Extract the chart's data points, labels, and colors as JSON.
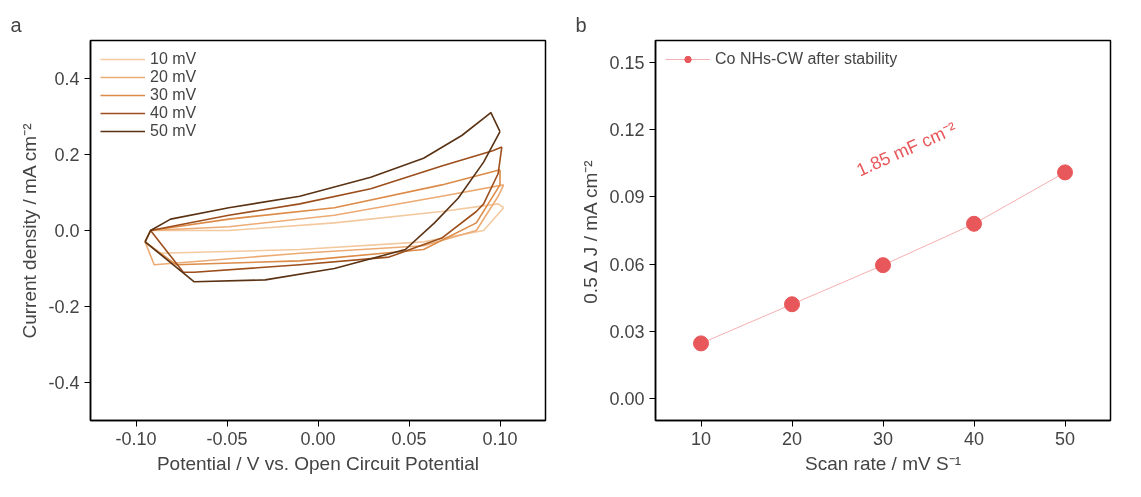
{
  "chart_data": [
    {
      "type": "line",
      "title": "a",
      "xlabel": "Potential / V vs. Open Circuit Potential",
      "ylabel": "Current density / mA cm⁻²",
      "xlim": [
        -0.125,
        0.125
      ],
      "ylim": [
        -0.5,
        0.5
      ],
      "xticks": [
        {
          "value": -0.1,
          "label": "-0.10"
        },
        {
          "value": -0.05,
          "label": "-0.05"
        },
        {
          "value": 0,
          "label": "0.00"
        },
        {
          "value": 0.05,
          "label": "0.05"
        },
        {
          "value": 0.1,
          "label": "0.10"
        }
      ],
      "yticks": [
        {
          "value": -0.4,
          "label": "-0.4"
        },
        {
          "value": -0.2,
          "label": "-0.2"
        },
        {
          "value": 0,
          "label": "0.0"
        },
        {
          "value": 0.2,
          "label": "0.2"
        },
        {
          "value": 0.4,
          "label": "0.4"
        }
      ],
      "grid": false,
      "legend": "top left",
      "marker": "none",
      "line_style": "solid",
      "series": [
        {
          "name": "10 mV",
          "color": "#f3c9a0",
          "x": [
            -0.095,
            -0.092,
            -0.049,
            0.009,
            0.068,
            0.099,
            0.102
          ],
          "values": [
            -0.03,
            0.0,
            0.0,
            0.02,
            0.05,
            0.07,
            0.06
          ]
        },
        {
          "color": "#f3c9a0",
          "x": [
            -0.095,
            -0.087,
            -0.01,
            0.058,
            0.091,
            0.102
          ],
          "values": [
            -0.03,
            -0.06,
            -0.05,
            -0.03,
            0.0,
            0.06
          ]
        },
        {
          "name": "20 mV",
          "color": "#ecab74",
          "x": [
            -0.095,
            -0.092,
            -0.049,
            0.009,
            0.068,
            0.102
          ],
          "values": [
            -0.03,
            0.0,
            0.01,
            0.04,
            0.09,
            0.12
          ]
        },
        {
          "color": "#ecab74",
          "x": [
            -0.095,
            -0.09,
            -0.01,
            0.058,
            0.087,
            0.099,
            0.102
          ],
          "values": [
            -0.03,
            -0.09,
            -0.06,
            -0.04,
            0.0,
            0.09,
            0.12
          ]
        },
        {
          "name": "30 mV",
          "color": "#dc8b48",
          "x": [
            -0.095,
            -0.092,
            -0.049,
            0.009,
            0.068,
            0.1
          ],
          "values": [
            -0.03,
            0.0,
            0.03,
            0.06,
            0.12,
            0.16
          ]
        },
        {
          "color": "#dc8b48",
          "x": [
            -0.095,
            -0.078,
            -0.01,
            0.058,
            0.087,
            0.1,
            0.1
          ],
          "values": [
            -0.03,
            -0.09,
            -0.08,
            -0.05,
            0.02,
            0.12,
            0.16
          ]
        },
        {
          "name": "40 mV",
          "color": "#9c4e1c",
          "x": [
            -0.092,
            -0.049,
            -0.01,
            0.029,
            0.068,
            0.096,
            0.101
          ],
          "values": [
            0.0,
            0.04,
            0.07,
            0.11,
            0.17,
            0.21,
            0.22
          ]
        },
        {
          "color": "#9c4e1c",
          "x": [
            -0.092,
            -0.074,
            -0.068,
            -0.01,
            0.039,
            0.068,
            0.087,
            0.091,
            0.099,
            0.101
          ],
          "values": [
            0.0,
            -0.11,
            -0.11,
            -0.09,
            -0.07,
            -0.02,
            0.05,
            0.07,
            0.15,
            0.22
          ]
        },
        {
          "name": "50 mV",
          "color": "#5a3214",
          "x": [
            -0.095,
            -0.092,
            -0.081,
            -0.049,
            -0.01,
            0.029,
            0.058,
            0.079,
            0.095,
            0.1
          ],
          "values": [
            -0.03,
            0.0,
            0.03,
            0.06,
            0.09,
            0.14,
            0.19,
            0.25,
            0.31,
            0.26
          ]
        },
        {
          "color": "#5a3214",
          "x": [
            -0.095,
            -0.068,
            -0.029,
            0.009,
            0.048,
            0.064,
            0.077,
            0.091,
            0.1
          ],
          "values": [
            -0.03,
            -0.135,
            -0.13,
            -0.1,
            -0.05,
            0.02,
            0.085,
            0.18,
            0.26
          ]
        }
      ]
    },
    {
      "type": "line",
      "title": "b",
      "xlabel": "Scan rate / mV S⁻¹",
      "ylabel": "0.5 Δ J / mA cm⁻²",
      "xlim": [
        5,
        55
      ],
      "ylim": [
        -0.01,
        0.16
      ],
      "xticks": [
        10,
        20,
        30,
        40,
        50
      ],
      "yticks": [
        {
          "value": 0,
          "label": "0.00"
        },
        {
          "value": 0.03,
          "label": "0.03"
        },
        {
          "value": 0.06,
          "label": "0.06"
        },
        {
          "value": 0.09,
          "label": "0.09"
        },
        {
          "value": 0.12,
          "label": "0.12"
        },
        {
          "value": 0.15,
          "label": "0.15"
        }
      ],
      "grid": false,
      "legend": "top left",
      "marker": "circle",
      "line_style": "solid",
      "annotations": [
        "1.85 mF cm⁻²"
      ],
      "series": [
        {
          "name": "Co NHs-CW after stability",
          "color": "#e8575a",
          "x": [
            10,
            20,
            30,
            40,
            50
          ],
          "values": [
            0.0245,
            0.042,
            0.0595,
            0.078,
            0.101
          ]
        }
      ]
    }
  ]
}
